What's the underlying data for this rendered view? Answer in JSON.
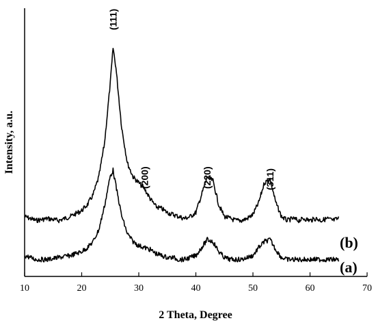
{
  "chart_data": {
    "type": "line",
    "xlabel": "2 Theta, Degree",
    "ylabel": "Intensity, a.u.",
    "xlim": [
      10,
      70
    ],
    "ylim": [
      0,
      100
    ],
    "x_ticks": [
      10,
      20,
      30,
      40,
      50,
      60,
      70
    ],
    "grid": false,
    "legend": "inline-right",
    "annotations": [
      {
        "text": "(111)",
        "x": 25.5
      },
      {
        "text": "(200)",
        "x": 31
      },
      {
        "text": "(220)",
        "x": 42
      },
      {
        "text": "(311)",
        "x": 53
      }
    ],
    "series": [
      {
        "name": "(b)",
        "x": [
          10,
          12,
          14,
          16,
          18,
          20,
          21,
          22,
          23,
          24,
          25,
          25.5,
          26,
          27,
          28,
          29,
          30,
          31,
          32,
          33,
          34,
          35,
          36,
          37,
          38,
          39,
          40,
          41,
          42,
          43,
          44,
          45,
          46,
          47,
          48,
          49,
          50,
          51,
          52,
          53,
          54,
          55,
          56,
          57,
          58,
          59,
          60,
          61,
          62,
          63,
          64,
          65
        ],
        "y": [
          15,
          13,
          14,
          13,
          15,
          18,
          21,
          26,
          35,
          52,
          82,
          100,
          90,
          60,
          42,
          35,
          32,
          29,
          24,
          20,
          19,
          17,
          16,
          15,
          14,
          15,
          17,
          26,
          35,
          33,
          21,
          15,
          14,
          13,
          13,
          14,
          16,
          22,
          32,
          34,
          22,
          15,
          13,
          14,
          13,
          14,
          13,
          14,
          13,
          14,
          13,
          14
        ]
      },
      {
        "name": "(a)",
        "x": [
          10,
          12,
          14,
          16,
          18,
          20,
          21,
          22,
          23,
          24,
          25,
          25.5,
          26,
          27,
          28,
          29,
          30,
          31,
          32,
          33,
          34,
          35,
          36,
          37,
          38,
          39,
          40,
          41,
          42,
          43,
          44,
          45,
          46,
          47,
          48,
          49,
          50,
          51,
          52,
          53,
          54,
          55,
          56,
          57,
          58,
          59,
          60,
          61,
          62,
          63,
          64,
          65
        ],
        "y": [
          5,
          3,
          3,
          4,
          5,
          7,
          9,
          12,
          18,
          30,
          45,
          48,
          40,
          25,
          16,
          12,
          10,
          9,
          8,
          6,
          5,
          4,
          4,
          3,
          3,
          4,
          5,
          9,
          13,
          12,
          7,
          4,
          3,
          3,
          3,
          4,
          5,
          9,
          12,
          13,
          8,
          4,
          3,
          3,
          3,
          3,
          3,
          3,
          3,
          3,
          3,
          3
        ]
      }
    ]
  }
}
